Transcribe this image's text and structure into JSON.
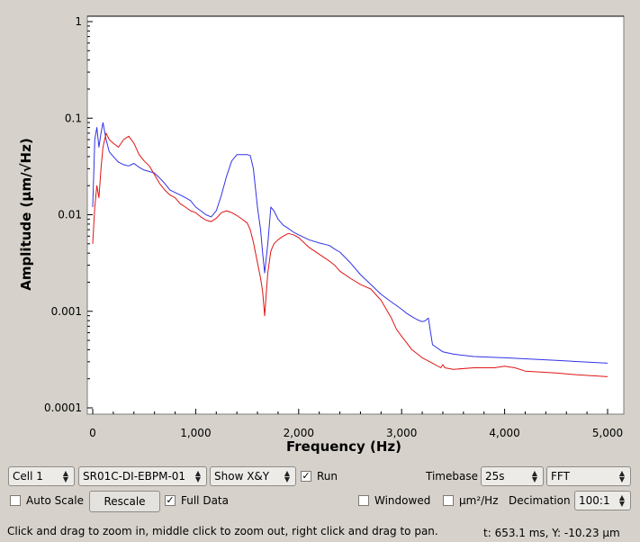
{
  "chart_data": {
    "type": "line",
    "xlabel": "Frequency (Hz)",
    "ylabel": "Amplitude (µm/√Hz)",
    "xlim": [
      0,
      5000
    ],
    "ylim": [
      0.0001,
      1
    ],
    "yscale": "log",
    "grid": false,
    "x_ticks": [
      0,
      1000,
      2000,
      3000,
      4000,
      5000
    ],
    "x_tick_labels": [
      "0",
      "1,000",
      "2,000",
      "3,000",
      "4,000",
      "5,000"
    ],
    "y_ticks": [
      1,
      0.1,
      0.01,
      0.001,
      0.0001
    ],
    "y_tick_labels": [
      "1",
      "0.1",
      "0.01",
      "0.001",
      "0.0001"
    ],
    "series": [
      {
        "color": "#3232e6",
        "x": [
          0,
          20,
          40,
          60,
          80,
          100,
          130,
          160,
          200,
          250,
          300,
          350,
          400,
          450,
          500,
          550,
          600,
          650,
          700,
          750,
          800,
          850,
          900,
          950,
          1000,
          1050,
          1100,
          1150,
          1200,
          1250,
          1300,
          1350,
          1400,
          1450,
          1500,
          1530,
          1560,
          1600,
          1630,
          1650,
          1670,
          1700,
          1730,
          1760,
          1800,
          1850,
          1900,
          1950,
          2000,
          2100,
          2200,
          2300,
          2350,
          2400,
          2500,
          2600,
          2700,
          2800,
          2900,
          3000,
          3050,
          3100,
          3150,
          3200,
          3230,
          3260,
          3300,
          3400,
          3500,
          3700,
          4000,
          4500,
          5000
        ],
        "y": [
          0.012,
          0.06,
          0.08,
          0.05,
          0.07,
          0.09,
          0.06,
          0.045,
          0.04,
          0.035,
          0.033,
          0.032,
          0.034,
          0.031,
          0.029,
          0.028,
          0.027,
          0.024,
          0.021,
          0.018,
          0.017,
          0.016,
          0.015,
          0.014,
          0.012,
          0.011,
          0.01,
          0.0095,
          0.011,
          0.016,
          0.025,
          0.036,
          0.042,
          0.042,
          0.042,
          0.041,
          0.03,
          0.012,
          0.007,
          0.004,
          0.0025,
          0.005,
          0.012,
          0.011,
          0.009,
          0.0078,
          0.0072,
          0.0066,
          0.0062,
          0.0055,
          0.0051,
          0.0048,
          0.0044,
          0.0041,
          0.0032,
          0.0024,
          0.0019,
          0.0015,
          0.00125,
          0.00105,
          0.00095,
          0.00088,
          0.00082,
          0.00078,
          0.0008,
          0.00085,
          0.00045,
          0.00038,
          0.00036,
          0.00034,
          0.00033,
          0.00031,
          0.00029
        ]
      },
      {
        "color": "#e01414",
        "x": [
          0,
          20,
          40,
          60,
          80,
          100,
          130,
          160,
          200,
          250,
          300,
          350,
          400,
          450,
          500,
          550,
          600,
          650,
          700,
          750,
          800,
          850,
          900,
          950,
          1000,
          1050,
          1100,
          1150,
          1200,
          1250,
          1300,
          1350,
          1400,
          1450,
          1500,
          1530,
          1560,
          1600,
          1630,
          1650,
          1670,
          1700,
          1730,
          1760,
          1800,
          1850,
          1900,
          1950,
          2000,
          2100,
          2200,
          2300,
          2350,
          2400,
          2500,
          2600,
          2700,
          2800,
          2900,
          2950,
          3000,
          3050,
          3100,
          3200,
          3300,
          3380,
          3400,
          3420,
          3500,
          3700,
          3900,
          4000,
          4100,
          4200,
          4500,
          4700,
          5000
        ],
        "y": [
          0.005,
          0.012,
          0.02,
          0.015,
          0.03,
          0.05,
          0.07,
          0.06,
          0.055,
          0.05,
          0.06,
          0.065,
          0.055,
          0.042,
          0.036,
          0.032,
          0.026,
          0.021,
          0.018,
          0.016,
          0.015,
          0.013,
          0.012,
          0.011,
          0.0105,
          0.0095,
          0.0088,
          0.0085,
          0.0092,
          0.0105,
          0.011,
          0.0105,
          0.0098,
          0.009,
          0.0082,
          0.007,
          0.0052,
          0.0032,
          0.0022,
          0.0016,
          0.0009,
          0.0025,
          0.0042,
          0.005,
          0.0055,
          0.006,
          0.0064,
          0.0062,
          0.0058,
          0.0046,
          0.0039,
          0.0033,
          0.003,
          0.0026,
          0.0022,
          0.0019,
          0.0017,
          0.0013,
          0.00085,
          0.00065,
          0.00055,
          0.00047,
          0.0004,
          0.00033,
          0.00029,
          0.00026,
          0.00028,
          0.00026,
          0.00025,
          0.00026,
          0.00026,
          0.00027,
          0.00026,
          0.00024,
          0.00023,
          0.00022,
          0.00021
        ]
      }
    ]
  },
  "controls": {
    "cell": "Cell 1",
    "device": "SR01C-DI-EBPM-01",
    "show": "Show X&Y",
    "run_label": "Run",
    "timebase_label": "Timebase",
    "timebase_value": "25s",
    "mode": "FFT",
    "auto_scale_label": "Auto Scale",
    "rescale_label": "Rescale",
    "full_data_label": "Full Data",
    "windowed_label": "Windowed",
    "psd_label": "µm²/Hz",
    "decimation_label": "Decimation",
    "decimation_value": "100:1"
  },
  "checks": {
    "run": true,
    "auto_scale": false,
    "full_data": true,
    "windowed": false,
    "psd": false
  },
  "status": {
    "hint": "Click and drag to zoom in, middle click to zoom out, right click and drag to pan.",
    "readout": "t: 653.1 ms, Y: -10.23 µm"
  }
}
